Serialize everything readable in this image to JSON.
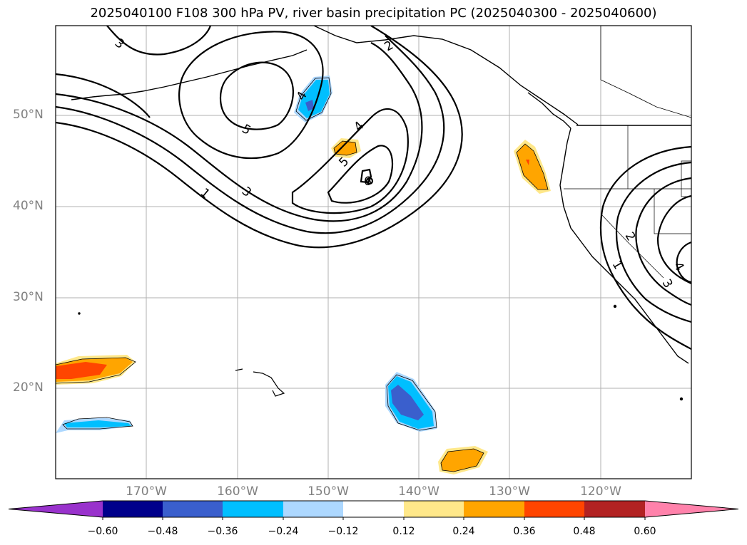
{
  "title": "2025040100 F108 300 hPa PV, river basin precipitation PC (2025040300 - 2025040600)",
  "lat_labels": [
    "50°N",
    "40°N",
    "30°N",
    "20°N"
  ],
  "lon_labels": [
    "170°W",
    "160°W",
    "150°W",
    "140°W",
    "130°W",
    "120°W"
  ],
  "pv_contour_labels": [
    "1",
    "2",
    "3",
    "4",
    "5",
    "6"
  ],
  "colorbar": {
    "levels": [
      "−0.60",
      "−0.48",
      "−0.36",
      "−0.24",
      "−0.12",
      "0.12",
      "0.24",
      "0.36",
      "0.48",
      "0.60"
    ],
    "colors": [
      "#9932CC",
      "#00008B",
      "#3A5FCD",
      "#00BFFF",
      "#ADD8FF",
      "#FFFFFF",
      "#FFE88A",
      "#FFA500",
      "#FF4500",
      "#B22222",
      "#FF82AB"
    ]
  }
}
